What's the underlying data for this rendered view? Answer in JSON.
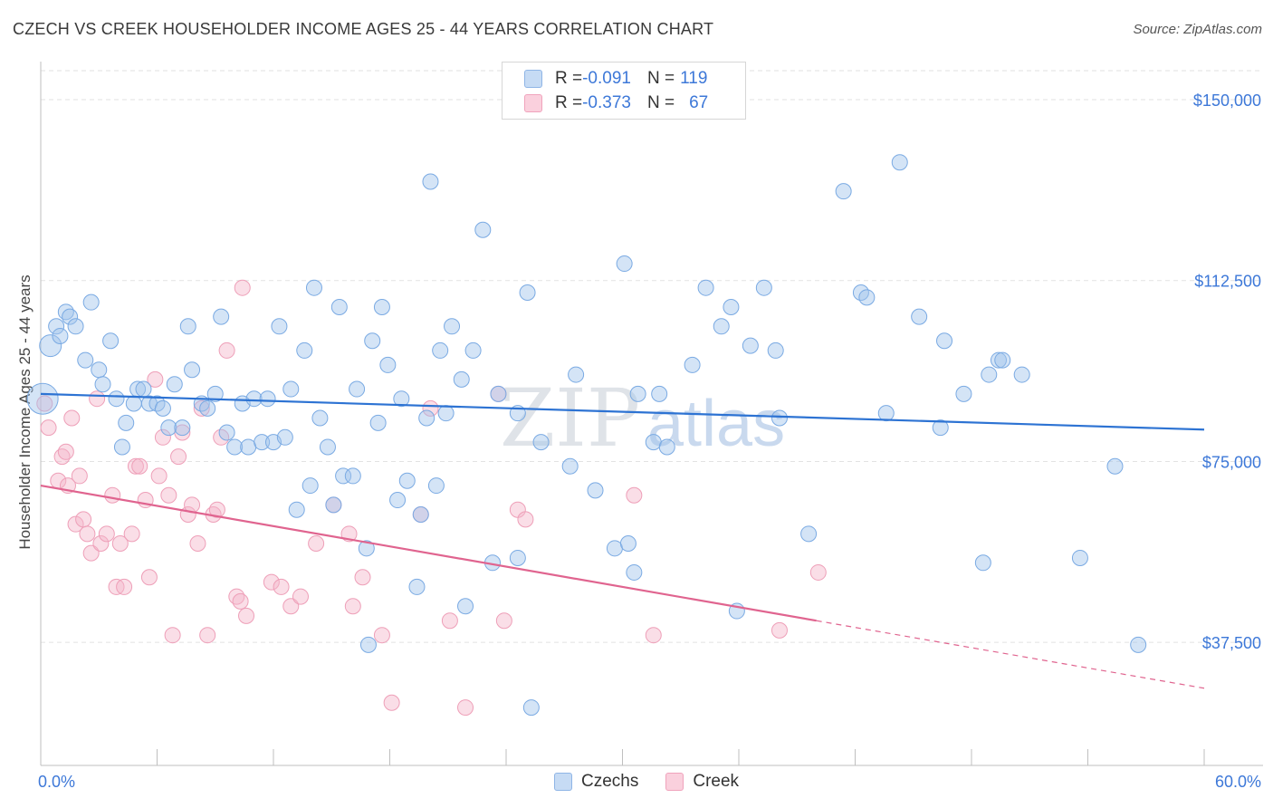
{
  "title": "CZECH VS CREEK HOUSEHOLDER INCOME AGES 25 - 44 YEARS CORRELATION CHART",
  "source": "Source: ZipAtlas.com",
  "watermark": {
    "zip": "ZIP",
    "atlas": "atlas"
  },
  "legend": {
    "czech": {
      "r_label": "R = ",
      "r_value": "-0.091",
      "n_label": "N = ",
      "n_value": "119"
    },
    "creek": {
      "r_label": "R = ",
      "r_value": "-0.373",
      "n_label": "N = ",
      "n_value": "67"
    }
  },
  "bottom_legend": {
    "czechs": "Czechs",
    "creek": "Creek"
  },
  "colors": {
    "czech": "#9fc3ec",
    "czech_line": "#2d73d3",
    "creek": "#f4b6c9",
    "creek_line": "#e0648f",
    "axis_text": "#3d78d8"
  },
  "chart_data": {
    "type": "scatter",
    "title": "CZECH VS CREEK HOUSEHOLDER INCOME AGES 25 - 44 YEARS CORRELATION CHART",
    "xlabel": "",
    "ylabel": "Householder Income Ages 25 - 44 years",
    "xlim": [
      0,
      60
    ],
    "ylim": [
      12000,
      156000
    ],
    "x_tick_labels": [
      "0.0%",
      "60.0%"
    ],
    "y_ticks": [
      37500,
      75000,
      112500,
      150000
    ],
    "y_tick_labels": [
      "$37,500",
      "$75,000",
      "$112,500",
      "$150,000"
    ],
    "series": [
      {
        "name": "Czechs",
        "trend": {
          "x0": 0,
          "y0": 89000,
          "x1": 60,
          "y1": 81600
        },
        "points": [
          [
            0.1,
            88000
          ],
          [
            0.5,
            99000
          ],
          [
            0.8,
            103000
          ],
          [
            1.0,
            101000
          ],
          [
            1.3,
            106000
          ],
          [
            1.5,
            105000
          ],
          [
            1.8,
            103000
          ],
          [
            2.3,
            96000
          ],
          [
            2.6,
            108000
          ],
          [
            3.0,
            94000
          ],
          [
            3.2,
            91000
          ],
          [
            3.6,
            100000
          ],
          [
            3.9,
            88000
          ],
          [
            4.2,
            78000
          ],
          [
            4.4,
            83000
          ],
          [
            4.8,
            87000
          ],
          [
            5.0,
            90000
          ],
          [
            5.3,
            90000
          ],
          [
            5.6,
            87000
          ],
          [
            6.0,
            87000
          ],
          [
            6.3,
            86000
          ],
          [
            6.6,
            82000
          ],
          [
            6.9,
            91000
          ],
          [
            7.3,
            82000
          ],
          [
            7.6,
            103000
          ],
          [
            7.8,
            94000
          ],
          [
            8.3,
            87000
          ],
          [
            8.6,
            86000
          ],
          [
            9.0,
            89000
          ],
          [
            9.3,
            105000
          ],
          [
            9.6,
            81000
          ],
          [
            10.0,
            78000
          ],
          [
            10.4,
            87000
          ],
          [
            10.7,
            78000
          ],
          [
            11.0,
            88000
          ],
          [
            11.4,
            79000
          ],
          [
            11.7,
            88000
          ],
          [
            12.0,
            79000
          ],
          [
            12.3,
            103000
          ],
          [
            12.6,
            80000
          ],
          [
            12.9,
            90000
          ],
          [
            13.2,
            65000
          ],
          [
            13.6,
            98000
          ],
          [
            13.9,
            70000
          ],
          [
            14.1,
            111000
          ],
          [
            14.4,
            84000
          ],
          [
            14.8,
            78000
          ],
          [
            15.1,
            66000
          ],
          [
            15.4,
            107000
          ],
          [
            15.6,
            72000
          ],
          [
            16.1,
            72000
          ],
          [
            16.3,
            90000
          ],
          [
            16.8,
            57000
          ],
          [
            16.9,
            37000
          ],
          [
            17.1,
            100000
          ],
          [
            17.4,
            83000
          ],
          [
            17.6,
            107000
          ],
          [
            17.9,
            95000
          ],
          [
            18.4,
            67000
          ],
          [
            18.6,
            88000
          ],
          [
            18.9,
            71000
          ],
          [
            19.4,
            49000
          ],
          [
            19.6,
            64000
          ],
          [
            19.9,
            84000
          ],
          [
            20.1,
            133000
          ],
          [
            20.4,
            70000
          ],
          [
            20.6,
            98000
          ],
          [
            20.9,
            85000
          ],
          [
            21.2,
            103000
          ],
          [
            21.7,
            92000
          ],
          [
            21.9,
            45000
          ],
          [
            22.3,
            98000
          ],
          [
            22.8,
            123000
          ],
          [
            23.3,
            54000
          ],
          [
            23.6,
            89000
          ],
          [
            24.6,
            55000
          ],
          [
            24.6,
            85000
          ],
          [
            25.1,
            110000
          ],
          [
            25.3,
            24000
          ],
          [
            25.8,
            79000
          ],
          [
            27.3,
            74000
          ],
          [
            27.6,
            93000
          ],
          [
            28.6,
            69000
          ],
          [
            29.6,
            57000
          ],
          [
            30.1,
            116000
          ],
          [
            30.3,
            58000
          ],
          [
            30.6,
            52000
          ],
          [
            30.8,
            89000
          ],
          [
            31.6,
            79000
          ],
          [
            31.9,
            89000
          ],
          [
            32.3,
            78000
          ],
          [
            33.6,
            95000
          ],
          [
            34.3,
            111000
          ],
          [
            35.1,
            103000
          ],
          [
            35.6,
            107000
          ],
          [
            35.9,
            44000
          ],
          [
            36.6,
            99000
          ],
          [
            37.3,
            111000
          ],
          [
            37.9,
            98000
          ],
          [
            38.1,
            84000
          ],
          [
            39.6,
            60000
          ],
          [
            41.4,
            131000
          ],
          [
            42.3,
            110000
          ],
          [
            42.6,
            109000
          ],
          [
            43.6,
            85000
          ],
          [
            44.3,
            137000
          ],
          [
            45.3,
            105000
          ],
          [
            46.4,
            82000
          ],
          [
            46.6,
            100000
          ],
          [
            47.6,
            89000
          ],
          [
            48.6,
            54000
          ],
          [
            48.9,
            93000
          ],
          [
            49.4,
            96000
          ],
          [
            49.6,
            96000
          ],
          [
            50.6,
            93000
          ],
          [
            53.6,
            55000
          ],
          [
            55.4,
            74000
          ],
          [
            56.6,
            37000
          ]
        ]
      },
      {
        "name": "Creek",
        "trend": {
          "x0": 0,
          "y0": 70000,
          "x1": 40,
          "y1": 42000,
          "dash_x1": 60,
          "dash_y1": 28000
        },
        "points": [
          [
            0.2,
            87000
          ],
          [
            0.4,
            82000
          ],
          [
            0.9,
            71000
          ],
          [
            1.1,
            76000
          ],
          [
            1.3,
            77000
          ],
          [
            1.4,
            70000
          ],
          [
            1.6,
            84000
          ],
          [
            1.8,
            62000
          ],
          [
            2.0,
            72000
          ],
          [
            2.2,
            63000
          ],
          [
            2.4,
            60000
          ],
          [
            2.6,
            56000
          ],
          [
            2.9,
            88000
          ],
          [
            3.1,
            58000
          ],
          [
            3.4,
            60000
          ],
          [
            3.7,
            68000
          ],
          [
            3.9,
            49000
          ],
          [
            4.1,
            58000
          ],
          [
            4.3,
            49000
          ],
          [
            4.7,
            60000
          ],
          [
            4.9,
            74000
          ],
          [
            5.1,
            74000
          ],
          [
            5.4,
            67000
          ],
          [
            5.6,
            51000
          ],
          [
            5.9,
            92000
          ],
          [
            6.1,
            72000
          ],
          [
            6.3,
            80000
          ],
          [
            6.6,
            68000
          ],
          [
            6.8,
            39000
          ],
          [
            7.1,
            76000
          ],
          [
            7.3,
            81000
          ],
          [
            7.6,
            64000
          ],
          [
            7.8,
            66000
          ],
          [
            8.1,
            58000
          ],
          [
            8.3,
            86000
          ],
          [
            8.6,
            39000
          ],
          [
            8.9,
            64000
          ],
          [
            9.1,
            65000
          ],
          [
            9.3,
            80000
          ],
          [
            9.6,
            98000
          ],
          [
            10.1,
            47000
          ],
          [
            10.3,
            46000
          ],
          [
            10.4,
            111000
          ],
          [
            10.6,
            43000
          ],
          [
            11.9,
            50000
          ],
          [
            12.4,
            49000
          ],
          [
            12.9,
            45000
          ],
          [
            13.4,
            47000
          ],
          [
            14.2,
            58000
          ],
          [
            15.1,
            66000
          ],
          [
            15.9,
            60000
          ],
          [
            16.1,
            45000
          ],
          [
            16.6,
            51000
          ],
          [
            17.6,
            39000
          ],
          [
            18.1,
            25000
          ],
          [
            19.6,
            64000
          ],
          [
            20.1,
            86000
          ],
          [
            21.1,
            42000
          ],
          [
            21.9,
            24000
          ],
          [
            23.6,
            89000
          ],
          [
            23.9,
            42000
          ],
          [
            24.6,
            65000
          ],
          [
            25.0,
            63000
          ],
          [
            30.6,
            68000
          ],
          [
            31.6,
            39000
          ],
          [
            38.1,
            40000
          ],
          [
            40.1,
            52000
          ]
        ]
      }
    ]
  }
}
